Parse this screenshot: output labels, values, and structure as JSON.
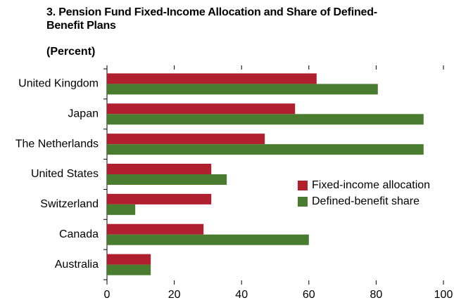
{
  "chart_data": {
    "type": "hbar",
    "title": "3. Pension Fund Fixed-Income Allocation and Share of Defined-Benefit Plans",
    "subtitle": "(Percent)",
    "categories": [
      "United Kingdom",
      "Japan",
      "The Netherlands",
      "United States",
      "Switzerland",
      "Canada",
      "Australia"
    ],
    "series": [
      {
        "name": "Fixed-income allocation",
        "color": "#b01f2e",
        "values": [
          62.3,
          55.9,
          46.9,
          31,
          31,
          28.7,
          13
        ]
      },
      {
        "name": "Defined-benefit share",
        "color": "#4a7c2f",
        "values": [
          80.5,
          94.1,
          94.1,
          35.6,
          8.4,
          60,
          13
        ]
      }
    ],
    "xlim": [
      0,
      100
    ],
    "xticks": [
      0,
      20,
      40,
      60,
      80,
      100
    ],
    "legend": "right"
  }
}
